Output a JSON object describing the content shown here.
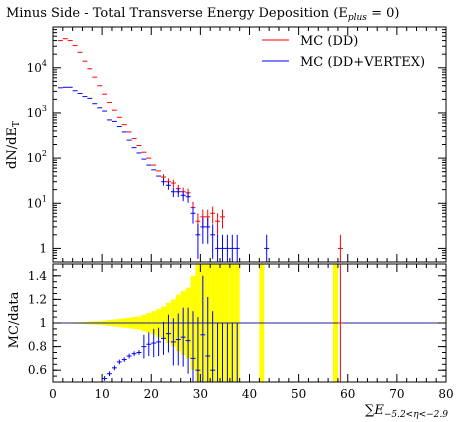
{
  "chart_data": [
    {
      "type": "scatter",
      "panel": "main",
      "title": "Minus Side - Total Transverse Energy Deposition (E",
      "title_sub": "plus",
      "title_tail": " = 0)",
      "ylabel": "dN/dE",
      "ylabel_sub": "T",
      "yscale": "log",
      "ylim": [
        0.5,
        80000
      ],
      "yticks": [
        {
          "value": 1,
          "label": "1",
          "exp": ""
        },
        {
          "value": 10,
          "label": "10",
          "exp": "1"
        },
        {
          "value": 100,
          "label": "10",
          "exp": "2"
        },
        {
          "value": 1000,
          "label": "10",
          "exp": "3"
        },
        {
          "value": 10000,
          "label": "10",
          "exp": "4"
        }
      ],
      "legend_position": "top-right",
      "series": [
        {
          "name": "MC (DD)",
          "color": "#ff0000",
          "points": [
            [
              1,
              40000
            ],
            [
              2,
              44000
            ],
            [
              3,
              40000
            ],
            [
              4,
              31000
            ],
            [
              5,
              22000
            ],
            [
              6,
              14000
            ],
            [
              7,
              9500
            ],
            [
              8,
              6200
            ],
            [
              9,
              4000
            ],
            [
              10,
              2600
            ],
            [
              11,
              1700
            ],
            [
              12,
              1150
            ],
            [
              13,
              800
            ],
            [
              14,
              550
            ],
            [
              15,
              380
            ],
            [
              16,
              270
            ],
            [
              17,
              190
            ],
            [
              18,
              135
            ],
            [
              19,
              100
            ],
            [
              20,
              70
            ],
            [
              21,
              52
            ],
            [
              22,
              38
            ],
            [
              23,
              30
            ],
            [
              24,
              28
            ],
            [
              25,
              21
            ],
            [
              26,
              18
            ],
            [
              27,
              17
            ],
            [
              28,
              8
            ],
            [
              29,
              4
            ],
            [
              30,
              5
            ],
            [
              31,
              5
            ],
            [
              32,
              6
            ],
            [
              33,
              4
            ],
            [
              34,
              5
            ],
            [
              58,
              1
            ]
          ]
        },
        {
          "name": "MC (DD+VERTEX)",
          "color": "#0000ff",
          "points": [
            [
              1,
              3600
            ],
            [
              2,
              3700
            ],
            [
              3,
              3700
            ],
            [
              4,
              3100
            ],
            [
              5,
              2700
            ],
            [
              6,
              2300
            ],
            [
              7,
              2100
            ],
            [
              8,
              1600
            ],
            [
              9,
              1300
            ],
            [
              10,
              1100
            ],
            [
              11,
              700
            ],
            [
              12,
              650
            ],
            [
              13,
              500
            ],
            [
              14,
              380
            ],
            [
              15,
              250
            ],
            [
              16,
              170
            ],
            [
              17,
              130
            ],
            [
              18,
              95
            ],
            [
              19,
              70
            ],
            [
              20,
              55
            ],
            [
              21,
              40
            ],
            [
              22,
              30
            ],
            [
              23,
              25
            ],
            [
              24,
              18
            ],
            [
              25,
              18
            ],
            [
              26,
              15
            ],
            [
              27,
              14
            ],
            [
              28,
              6
            ],
            [
              29,
              2
            ],
            [
              30,
              3
            ],
            [
              31,
              3
            ],
            [
              32,
              2
            ],
            [
              33,
              1
            ],
            [
              34,
              1
            ],
            [
              35,
              1
            ],
            [
              36,
              1
            ],
            [
              37,
              1
            ],
            [
              43,
              1
            ]
          ]
        }
      ]
    },
    {
      "type": "scatter",
      "panel": "ratio",
      "ylabel": "MC/data",
      "xlabel": "E",
      "xlabel_sub": "−5.2<η<−2.9",
      "xlim": [
        0,
        80
      ],
      "ylim": [
        0.5,
        1.5
      ],
      "xticks": [
        0,
        10,
        20,
        30,
        40,
        50,
        60,
        70,
        80
      ],
      "yticks": [
        "0.6",
        "0.8",
        "1",
        "1.2",
        "1.4"
      ],
      "band_color": "#ffff00",
      "band_halfwidth": [
        [
          0,
          0.002
        ],
        [
          1,
          0.003
        ],
        [
          2,
          0.004
        ],
        [
          3,
          0.005
        ],
        [
          4,
          0.006
        ],
        [
          5,
          0.007
        ],
        [
          6,
          0.009
        ],
        [
          7,
          0.011
        ],
        [
          8,
          0.013
        ],
        [
          9,
          0.016
        ],
        [
          10,
          0.02
        ],
        [
          11,
          0.025
        ],
        [
          12,
          0.03
        ],
        [
          13,
          0.035
        ],
        [
          14,
          0.04
        ],
        [
          15,
          0.045
        ],
        [
          16,
          0.05
        ],
        [
          17,
          0.055
        ],
        [
          18,
          0.07
        ],
        [
          19,
          0.085
        ],
        [
          20,
          0.1
        ],
        [
          21,
          0.12
        ],
        [
          22,
          0.14
        ],
        [
          23,
          0.17
        ],
        [
          24,
          0.2
        ],
        [
          25,
          0.24
        ],
        [
          26,
          0.27
        ],
        [
          27,
          0.3
        ],
        [
          28,
          0.4
        ],
        [
          29,
          0.5
        ],
        [
          30,
          0.5
        ],
        [
          31,
          0.5
        ],
        [
          32,
          0.5
        ],
        [
          33,
          0.5
        ],
        [
          34,
          0.5
        ],
        [
          35,
          0.5
        ],
        [
          36,
          0.5
        ],
        [
          37,
          0.5
        ],
        [
          42,
          0.5
        ],
        [
          57,
          0.5
        ]
      ],
      "series": [
        {
          "name": "MC (DD)",
          "color": "#ff0000",
          "points": [
            [
              58,
              1.0
            ]
          ]
        },
        {
          "name": "MC (DD+VERTEX)",
          "color": "#0000ff",
          "points": [
            [
              10,
              0.53
            ],
            [
              11,
              0.57
            ],
            [
              12,
              0.62
            ],
            [
              13,
              0.67
            ],
            [
              14,
              0.69
            ],
            [
              15,
              0.72
            ],
            [
              16,
              0.74
            ],
            [
              17,
              0.75
            ],
            [
              18,
              0.8
            ],
            [
              19,
              0.82
            ],
            [
              20,
              0.83
            ],
            [
              21,
              0.84
            ],
            [
              22,
              0.87
            ],
            [
              23,
              0.91
            ],
            [
              24,
              0.84
            ],
            [
              25,
              0.86
            ],
            [
              26,
              0.88
            ],
            [
              27,
              0.85
            ],
            [
              28,
              0.7
            ],
            [
              29,
              0.6
            ],
            [
              30,
              0.9
            ],
            [
              31,
              0.72
            ],
            [
              32,
              0.6
            ],
            [
              33,
              0.5
            ],
            [
              34,
              0.5
            ],
            [
              35,
              0.5
            ],
            [
              36,
              0.5
            ],
            [
              37,
              0.5
            ]
          ],
          "errors": [
            [
              18,
              0.1
            ],
            [
              19,
              0.1
            ],
            [
              20,
              0.12
            ],
            [
              21,
              0.12
            ],
            [
              22,
              0.14
            ],
            [
              23,
              0.16
            ],
            [
              24,
              0.2
            ],
            [
              25,
              0.22
            ],
            [
              26,
              0.25
            ],
            [
              27,
              0.28
            ],
            [
              28,
              0.4
            ],
            [
              29,
              0.45
            ],
            [
              30,
              0.5
            ],
            [
              31,
              0.5
            ],
            [
              32,
              0.5
            ],
            [
              33,
              0.5
            ],
            [
              34,
              0.5
            ],
            [
              35,
              0.5
            ],
            [
              36,
              0.5
            ],
            [
              37,
              0.5
            ]
          ]
        }
      ]
    }
  ]
}
